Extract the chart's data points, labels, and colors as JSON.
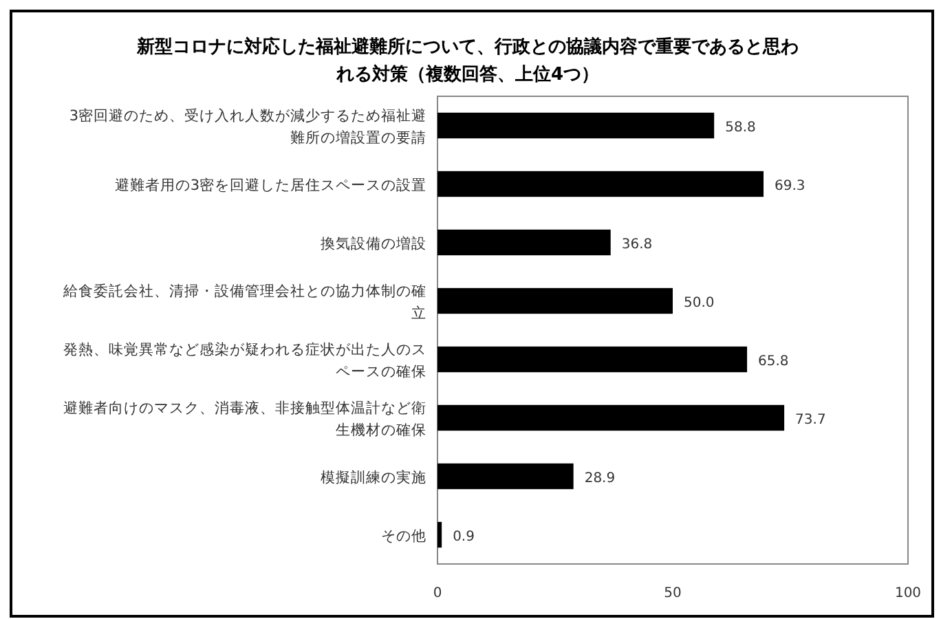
{
  "chart_data": {
    "type": "bar",
    "orientation": "horizontal",
    "title": "新型コロナに対応した福祉避難所について、行政との協議内容で重要であると思われる対策（複数回答、上位4つ）",
    "categories": [
      "3密回避のため、受け入れ人数が減少するため福祉避難所の増設置の要請",
      "避難者用の3密を回避した居住スペースの設置",
      "換気設備の増設",
      "給食委託会社、清掃・設備管理会社との協力体制の確立",
      "発熱、味覚異常など感染が疑われる症状が出た人のスペースの確保",
      "避難者向けのマスク、消毒液、非接触型体温計など衛生機材の確保",
      "模擬訓練の実施",
      "その他"
    ],
    "values": [
      58.8,
      69.3,
      36.8,
      50.0,
      65.8,
      73.7,
      28.9,
      0.9
    ],
    "color": "#000000",
    "xlim": [
      0,
      100
    ],
    "xticks": [
      0,
      50,
      100
    ],
    "grid": false,
    "value_labels": [
      "58.8",
      "69.3",
      "36.8",
      "50.0",
      "65.8",
      "73.7",
      "28.9",
      "0.9"
    ]
  }
}
